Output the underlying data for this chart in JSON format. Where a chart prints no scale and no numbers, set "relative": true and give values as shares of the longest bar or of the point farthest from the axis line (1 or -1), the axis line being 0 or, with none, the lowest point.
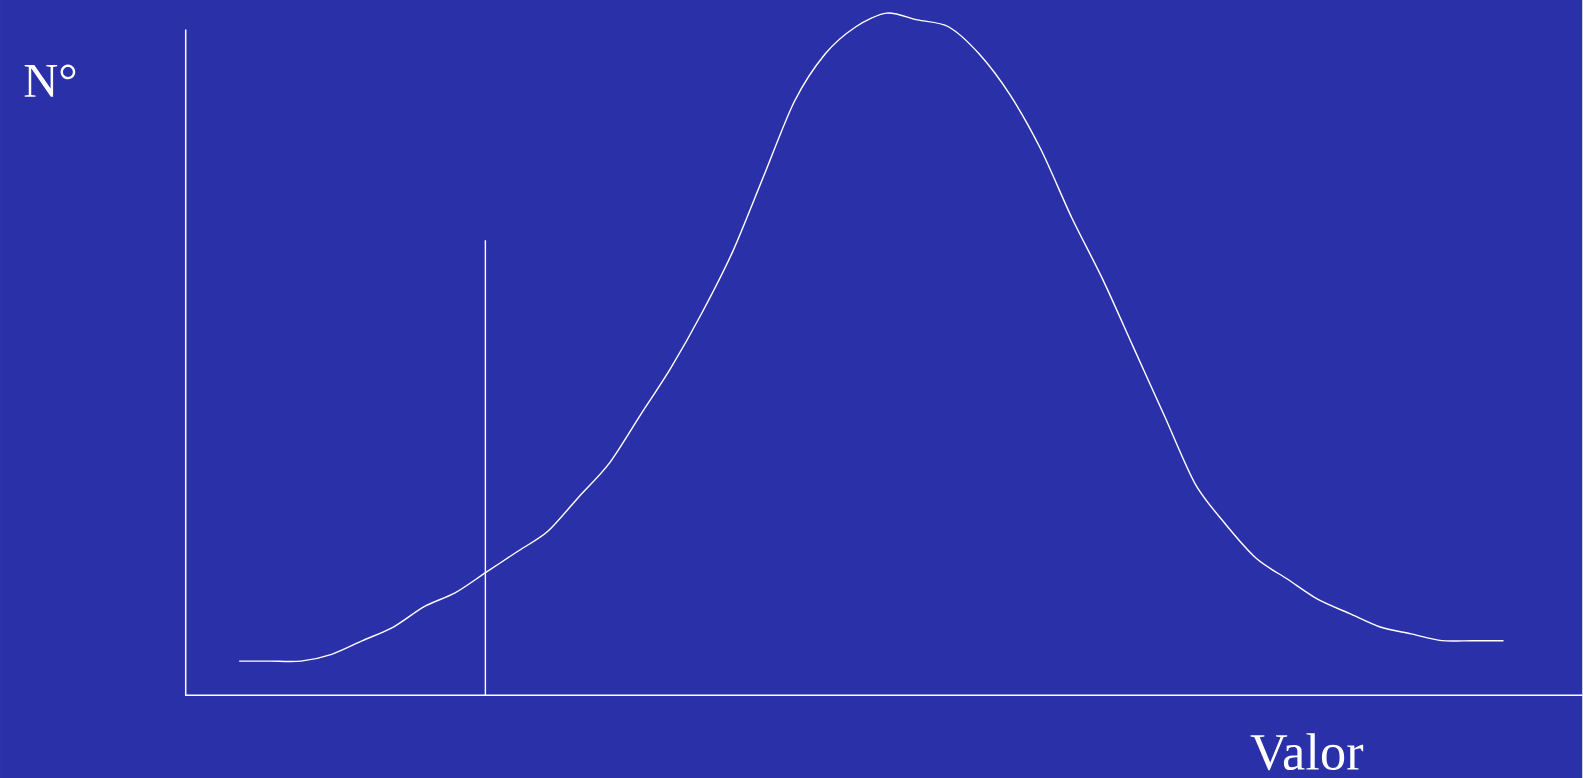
{
  "chart_data": {
    "type": "line",
    "relative": true,
    "xlabel": "Valor",
    "ylabel": "N°",
    "color": "#ffffff",
    "categories": [
      null,
      null,
      null,
      null,
      null,
      null,
      null,
      null,
      null,
      null,
      null,
      null,
      null,
      null,
      null,
      null,
      null,
      null,
      null,
      null,
      null,
      null,
      null,
      null,
      null,
      null,
      null,
      null,
      null,
      null,
      null,
      null,
      null,
      null,
      null,
      null,
      null,
      null,
      null,
      null,
      null,
      null
    ],
    "values": [
      0.05,
      0.05,
      0.05,
      0.06,
      0.08,
      0.1,
      0.13,
      0.15,
      0.18,
      0.21,
      0.24,
      0.29,
      0.34,
      0.41,
      0.48,
      0.56,
      0.65,
      0.76,
      0.87,
      0.94,
      0.98,
      1.0,
      0.99,
      0.98,
      0.94,
      0.88,
      0.8,
      0.7,
      0.61,
      0.51,
      0.41,
      0.31,
      0.25,
      0.2,
      0.17,
      0.14,
      0.12,
      0.1,
      0.09,
      0.08,
      0.08,
      0.08
    ]
  }
}
